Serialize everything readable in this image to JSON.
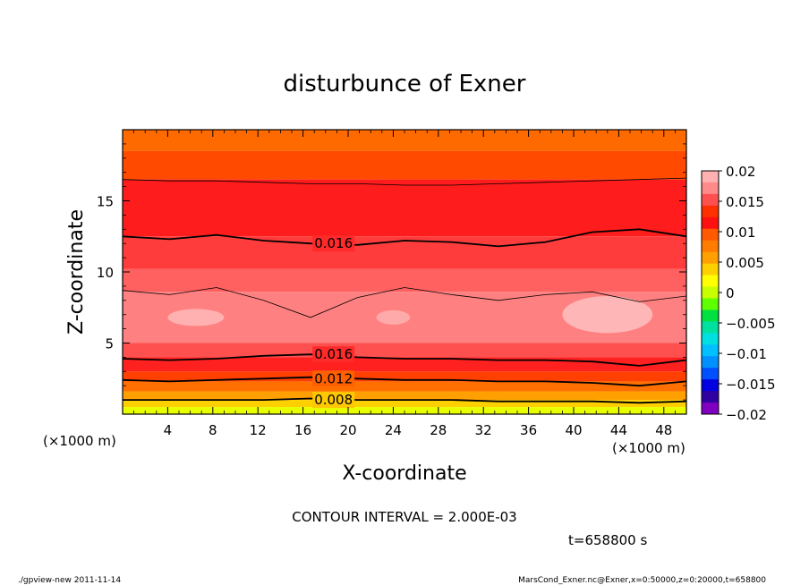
{
  "chart_data": {
    "type": "heatmap",
    "title": "disturbunce of Exner",
    "xlabel": "X-coordinate",
    "ylabel": "Z-coordinate",
    "x_unit_left": "(×1000 m)",
    "x_unit_right": "(×1000 m)",
    "xlim": [
      0,
      50
    ],
    "ylim": [
      0,
      20
    ],
    "x_ticks": [
      "4",
      "8",
      "12",
      "16",
      "20",
      "24",
      "28",
      "32",
      "36",
      "40",
      "44",
      "48"
    ],
    "y_ticks": [
      "5",
      "10",
      "15"
    ],
    "colorbar": {
      "range": [
        -0.02,
        0.02
      ],
      "labels": [
        "0.02",
        "0.015",
        "0.01",
        "0.005",
        "0",
        "−0.005",
        "−0.01",
        "−0.015",
        "−0.02"
      ],
      "colors_top_to_bottom": [
        "#ffb0b0",
        "#ff8a8a",
        "#ff5050",
        "#ff3000",
        "#ff1010",
        "#ff5a00",
        "#ff7c00",
        "#ffa000",
        "#ffd000",
        "#ffff00",
        "#c8ff00",
        "#60ff00",
        "#00e040",
        "#00e0a0",
        "#00e0e0",
        "#00c0ff",
        "#0090ff",
        "#0050ff",
        "#0000e0",
        "#3000a0",
        "#8000c0"
      ]
    },
    "contour_labels": [
      {
        "x": 17,
        "z": 12.0,
        "value": "0.016"
      },
      {
        "x": 17,
        "z": 4.2,
        "value": "0.016"
      },
      {
        "x": 17,
        "z": 2.5,
        "value": "0.012"
      },
      {
        "x": 17,
        "z": 1.0,
        "value": "0.008"
      }
    ],
    "bands": [
      {
        "z_top": 20,
        "z_bottom": 18.5,
        "color": "#ff6a00"
      },
      {
        "z_top": 18.5,
        "z_bottom": 16.5,
        "color": "#ff4a00"
      },
      {
        "z_top": 16.5,
        "z_bottom": 12.5,
        "color": "#ff1c1c"
      },
      {
        "z_top": 12.5,
        "z_bottom": 10.2,
        "color": "#ff3c3c"
      },
      {
        "z_top": 10.2,
        "z_bottom": 8.6,
        "color": "#ff6060"
      },
      {
        "z_top": 8.6,
        "z_bottom": 5.0,
        "color": "#ff8080"
      },
      {
        "z_top": 5.0,
        "z_bottom": 4.0,
        "color": "#ff5050"
      },
      {
        "z_top": 4.0,
        "z_bottom": 3.0,
        "color": "#ff2020"
      },
      {
        "z_top": 3.0,
        "z_bottom": 2.3,
        "color": "#ff4000"
      },
      {
        "z_top": 2.3,
        "z_bottom": 1.6,
        "color": "#ff7000"
      },
      {
        "z_top": 1.6,
        "z_bottom": 1.0,
        "color": "#ffa000"
      },
      {
        "z_top": 1.0,
        "z_bottom": 0.5,
        "color": "#ffd000"
      },
      {
        "z_top": 0.5,
        "z_bottom": 0,
        "color": "#e8ff00"
      }
    ],
    "contours": [
      {
        "value": 0.016,
        "weight": "thick",
        "z": [
          12.5,
          12.3,
          12.6,
          12.2,
          12.0,
          11.9,
          12.2,
          12.1,
          11.8,
          12.1,
          12.8,
          13.0,
          12.5
        ]
      },
      {
        "value": 0.014,
        "weight": "thin",
        "z": [
          8.7,
          8.4,
          8.9,
          8.0,
          6.8,
          8.2,
          8.9,
          8.4,
          8.0,
          8.4,
          8.6,
          7.9,
          8.3
        ]
      },
      {
        "value": 0.016,
        "weight": "thick",
        "z": [
          3.9,
          3.8,
          3.9,
          4.1,
          4.2,
          4.0,
          3.9,
          3.9,
          3.8,
          3.8,
          3.7,
          3.4,
          3.8
        ]
      },
      {
        "value": 0.012,
        "weight": "thick",
        "z": [
          2.4,
          2.3,
          2.4,
          2.5,
          2.6,
          2.5,
          2.4,
          2.4,
          2.3,
          2.3,
          2.2,
          2.0,
          2.3
        ]
      },
      {
        "value": 0.008,
        "weight": "thick",
        "z": [
          1.0,
          1.0,
          1.0,
          1.0,
          1.1,
          1.0,
          1.0,
          1.0,
          0.9,
          0.9,
          0.9,
          0.8,
          0.9
        ]
      },
      {
        "value": 0.018,
        "weight": "thin",
        "z": [
          16.5,
          16.4,
          16.4,
          16.3,
          16.2,
          16.2,
          16.1,
          16.1,
          16.2,
          16.3,
          16.4,
          16.5,
          16.6
        ]
      }
    ],
    "highlights": [
      {
        "cx": 6.5,
        "cz": 6.8,
        "rx": 2.5,
        "rz": 0.6,
        "color": "#ffb0b0"
      },
      {
        "cx": 24.0,
        "cz": 6.8,
        "rx": 1.5,
        "rz": 0.5,
        "color": "#ffaaaa"
      },
      {
        "cx": 43.0,
        "cz": 7.0,
        "rx": 4.0,
        "rz": 1.3,
        "color": "#ffb6b6"
      }
    ]
  },
  "contour_interval_text": "CONTOUR INTERVAL = 2.000E-03",
  "time_text": "t=658800 s",
  "footer_left": "./gpview-new  2011-11-14",
  "footer_right": "MarsCond_Exner.nc@Exner,x=0:50000,z=0:20000,t=658800"
}
